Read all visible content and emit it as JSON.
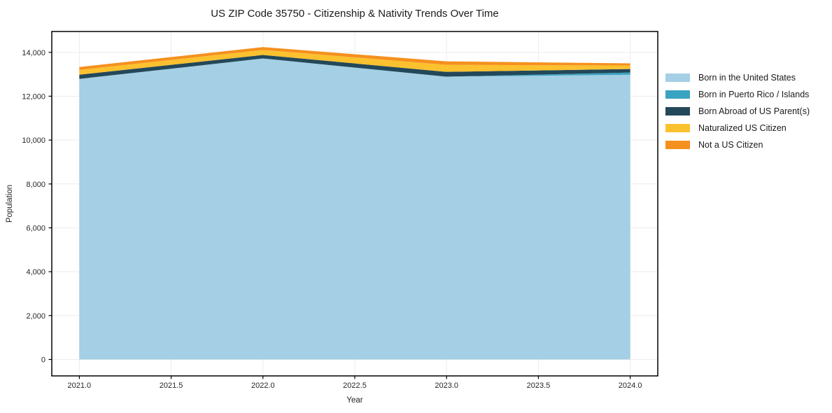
{
  "page": {
    "background": "#ffffff"
  },
  "chart_data": {
    "type": "area",
    "stacked": true,
    "title": "US ZIP Code 35750 - Citizenship & Nativity Trends Over Time",
    "xlabel": "Year",
    "ylabel": "Population",
    "x": [
      2021,
      2022,
      2023,
      2024
    ],
    "series": [
      {
        "name": "Born in the United States",
        "color": "#a4cfe4",
        "values": [
          12790,
          13720,
          12890,
          12980
        ]
      },
      {
        "name": "Born in Puerto Rico / Islands",
        "color": "#3aa3c1",
        "values": [
          0,
          0,
          0,
          100
        ]
      },
      {
        "name": "Born Abroad of US Parent(s)",
        "color": "#234859",
        "values": [
          190,
          160,
          220,
          160
        ]
      },
      {
        "name": "Naturalized US Citizen",
        "color": "#fcc12e",
        "values": [
          220,
          230,
          320,
          160
        ]
      },
      {
        "name": "Not a US Citizen",
        "color": "#f5901e",
        "values": [
          130,
          130,
          160,
          100
        ]
      }
    ],
    "totals": [
      13330,
      14240,
      13590,
      13500
    ],
    "xlim": [
      2020.85,
      2024.15
    ],
    "ylim": [
      -750,
      14950
    ],
    "xticks": {
      "values": [
        2021.0,
        2021.5,
        2022.0,
        2022.5,
        2023.0,
        2023.5,
        2024.0
      ],
      "labels": [
        "2021.0",
        "2021.5",
        "2022.0",
        "2022.5",
        "2023.0",
        "2023.5",
        "2024.0"
      ]
    },
    "yticks": {
      "values": [
        0,
        2000,
        4000,
        6000,
        8000,
        10000,
        12000,
        14000
      ],
      "labels": [
        "0",
        "2,000",
        "4,000",
        "6,000",
        "8,000",
        "10,000",
        "12,000",
        "14,000"
      ]
    },
    "grid": true,
    "legend_position": "right"
  },
  "colors": {
    "text": "#1a1a1a",
    "tick_text": "#262626",
    "grid": "#ececec",
    "spine": "#000000"
  }
}
